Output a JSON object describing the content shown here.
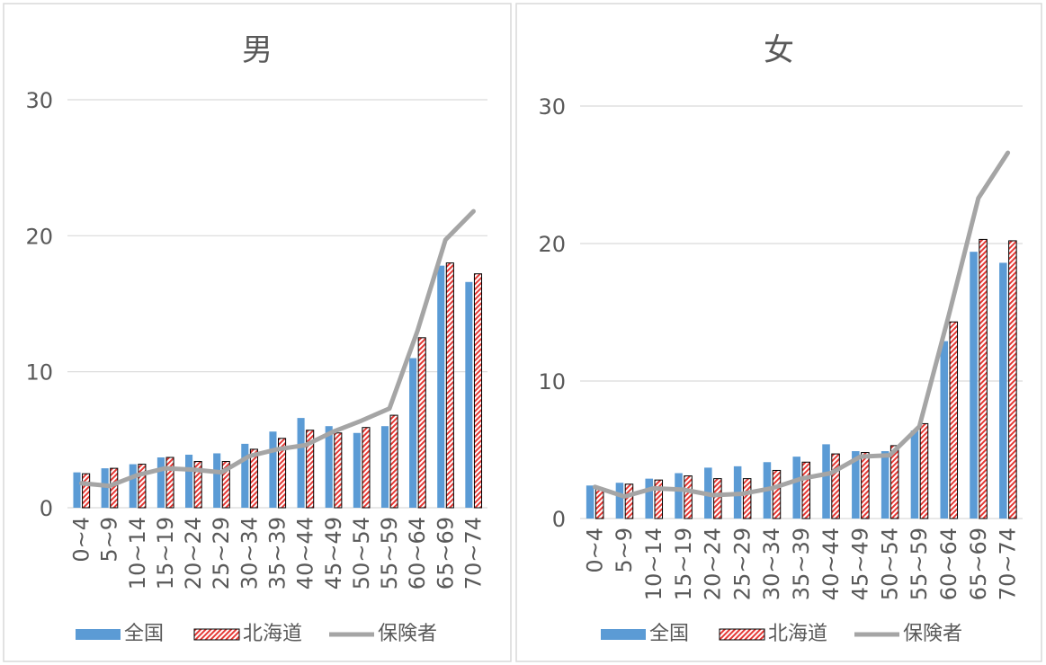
{
  "colors": {
    "national": "#5b9bd5",
    "hokkaido_stroke": "#000000",
    "hokkaido_hatch": "#e53935",
    "insurer": "#a5a5a5",
    "grid": "#d9d9d9",
    "text": "#595959",
    "panel_border": "#d9d9d9"
  },
  "legend": {
    "national": "全国",
    "hokkaido": "北海道",
    "insurer": "保険者"
  },
  "chart_data": [
    {
      "type": "bar",
      "title": "男",
      "categories": [
        "0~4",
        "5~9",
        "10~14",
        "15~19",
        "20~24",
        "25~29",
        "30~34",
        "35~39",
        "40~44",
        "45~49",
        "50~54",
        "55~59",
        "60~64",
        "65~69",
        "70~74"
      ],
      "ylim": [
        0,
        30
      ],
      "yticks": [
        0,
        10,
        20,
        30
      ],
      "grid": true,
      "legend_position": "bottom",
      "series": [
        {
          "name": "全国",
          "kind": "bar",
          "values": [
            2.6,
            2.9,
            3.2,
            3.7,
            3.9,
            4.0,
            4.7,
            5.6,
            6.6,
            6.0,
            5.5,
            6.0,
            11.0,
            17.8,
            16.6
          ]
        },
        {
          "name": "北海道",
          "kind": "bar-hatched",
          "values": [
            2.5,
            2.9,
            3.2,
            3.7,
            3.4,
            3.4,
            4.3,
            5.1,
            5.7,
            5.5,
            5.9,
            6.8,
            12.5,
            18.0,
            17.2
          ]
        },
        {
          "name": "保険者",
          "kind": "line",
          "values": [
            1.8,
            1.6,
            2.4,
            2.9,
            2.8,
            2.6,
            3.8,
            4.3,
            4.6,
            5.6,
            6.4,
            7.3,
            13.0,
            19.7,
            21.8
          ]
        }
      ]
    },
    {
      "type": "bar",
      "title": "女",
      "categories": [
        "0~4",
        "5~9",
        "10~14",
        "15~19",
        "20~24",
        "25~29",
        "30~34",
        "35~39",
        "40~44",
        "45~49",
        "50~54",
        "55~59",
        "60~64",
        "65~69",
        "70~74"
      ],
      "ylim": [
        0,
        30
      ],
      "yticks": [
        0,
        10,
        20,
        30
      ],
      "grid": true,
      "legend_position": "bottom",
      "series": [
        {
          "name": "全国",
          "kind": "bar",
          "values": [
            2.4,
            2.6,
            2.9,
            3.3,
            3.7,
            3.8,
            4.1,
            4.5,
            5.4,
            4.9,
            4.9,
            6.4,
            12.9,
            19.4,
            18.6
          ]
        },
        {
          "name": "北海道",
          "kind": "bar-hatched",
          "values": [
            2.2,
            2.5,
            2.8,
            3.1,
            2.9,
            2.9,
            3.5,
            4.1,
            4.7,
            4.8,
            5.3,
            6.9,
            14.3,
            20.3,
            20.2
          ]
        },
        {
          "name": "保険者",
          "kind": "line",
          "values": [
            2.3,
            1.6,
            2.2,
            2.1,
            1.7,
            1.8,
            2.2,
            2.9,
            3.3,
            4.5,
            4.6,
            6.7,
            14.8,
            23.3,
            26.6
          ]
        }
      ]
    }
  ]
}
